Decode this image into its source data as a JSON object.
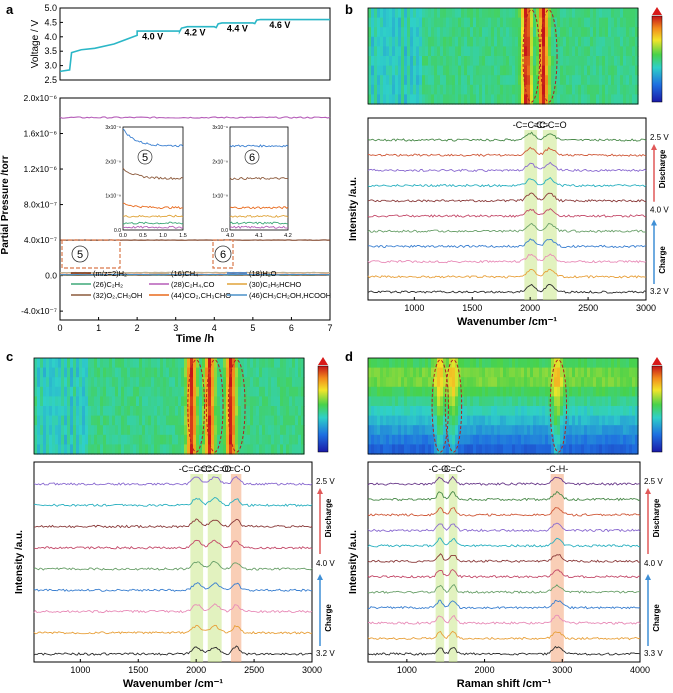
{
  "panels": {
    "a": {
      "letter": "a"
    },
    "b": {
      "letter": "b"
    },
    "c": {
      "letter": "c"
    },
    "d": {
      "letter": "d"
    }
  },
  "colors": {
    "voltage": "#2bb7c7",
    "heat_low": "#1f2db8",
    "heat_mid": "#31c66a",
    "heat_high": "#d2291a",
    "box_orange": "#d9784a",
    "band_green": "#cbe88a",
    "band_orange": "#f4a67a",
    "arrow_charge": "#3f8fd6",
    "arrow_discharge": "#e05858"
  },
  "chart_data": [
    {
      "id": "a-voltage",
      "type": "line",
      "ylabel": "Voltage / V",
      "ylim": [
        2.5,
        5.0
      ],
      "yticks": [
        "2.5",
        "3.0",
        "3.5",
        "4.0",
        "4.5",
        "5.0"
      ],
      "xlim": [
        0,
        7
      ],
      "series": [
        {
          "x": [
            0,
            0.25,
            0.3,
            0.55,
            0.9,
            1.4,
            1.9,
            2.0,
            2.0,
            3.1,
            3.1,
            3.15,
            3.3,
            4.0,
            4.05,
            4.1,
            4.2,
            5.0,
            5.05,
            5.1,
            5.2,
            7.0
          ],
          "y": [
            2.8,
            2.85,
            3.45,
            3.55,
            3.6,
            3.75,
            4.0,
            4.05,
            4.2,
            4.2,
            4.18,
            4.3,
            4.35,
            4.35,
            4.32,
            4.45,
            4.48,
            4.48,
            4.46,
            4.58,
            4.6,
            4.6
          ]
        }
      ],
      "annotations": [
        "4.0 V",
        "4.2 V",
        "4.4 V",
        "4.6 V"
      ]
    },
    {
      "id": "a-pressure",
      "type": "line",
      "ylabel": "Partial Pressure /torr",
      "xlabel": "Time /h",
      "xlim": [
        0,
        7
      ],
      "xticks": [
        "0",
        "1",
        "2",
        "3",
        "4",
        "5",
        "6",
        "7"
      ],
      "ylim": [
        -5e-07,
        2e-06
      ],
      "yticks": [
        "-4.0x10⁻⁷",
        "0.0",
        "4.0x10⁻⁷",
        "8.0x10⁻⁷",
        "1.2x10⁻⁶",
        "1.6x10⁻⁶",
        "2.0x10⁻⁶"
      ],
      "series": [
        {
          "name": "(m/z=2)H₂",
          "color": "#7a3b1f",
          "y": 4e-07
        },
        {
          "name": "(16)CH₄",
          "color": "#c0b090",
          "y": 3.5e-08
        },
        {
          "name": "(18)H₂O",
          "color": "#3a7fd0",
          "y": 1e-08
        },
        {
          "name": "(26)C₂H₂",
          "color": "#3fa878",
          "y": 5e-09
        },
        {
          "name": "(28)C₂H₄,CO",
          "color": "#b55db8",
          "y": 1.78e-06
        },
        {
          "name": "(30)C₂H₅HCHO",
          "color": "#e0a43a",
          "y": 8e-09
        },
        {
          "name": "(32)O₂,CH₃OH",
          "color": "#8c5a3c",
          "y": 6e-09
        },
        {
          "name": "(44)CO₂,CH₃CHO",
          "color": "#e86a1d",
          "y": 1.5e-08
        },
        {
          "name": "(46)CH₃CH₂OH,HCOOH",
          "color": "#4a90c8",
          "y": 1.2e-08
        }
      ],
      "markers": [
        "5",
        "6"
      ]
    },
    {
      "id": "a-inset-5",
      "type": "line",
      "label": "5",
      "xlim": [
        0,
        1.5
      ],
      "xticks": [
        "0.0",
        "0.5",
        "1.0",
        "1.5"
      ],
      "ylim": [
        0,
        3e-09
      ],
      "yticks": [
        "0.0",
        "1x10⁻⁹",
        "2x10⁻⁹",
        "3x10⁻⁹"
      ]
    },
    {
      "id": "a-inset-6",
      "type": "line",
      "label": "6",
      "xlim": [
        4.0,
        4.2
      ],
      "xticks": [
        "4.0",
        "4.1",
        "4.2"
      ],
      "ylim": [
        0,
        3e-09
      ],
      "yticks": [
        "0.0",
        "1x10⁻⁹",
        "2x10⁻⁹",
        "3x10⁻⁹"
      ]
    },
    {
      "id": "b",
      "type": "line",
      "xlabel": "Wavenumber /cm⁻¹",
      "ylabel": "Intensity /a.u.",
      "xlim": [
        600,
        3000
      ],
      "xticks": [
        "1000",
        "1500",
        "2000",
        "2500",
        "3000"
      ],
      "bands": [
        {
          "label": "-C=C=C-",
          "from": 1950,
          "to": 2060,
          "tone": "green"
        },
        {
          "label": "-C=C=O",
          "from": 2110,
          "to": 2230,
          "tone": "green"
        }
      ],
      "voltages": {
        "top": "2.5 V",
        "mid": "4.0 V",
        "bottom": "3.2 V"
      },
      "arrows": {
        "discharge": "Discharge",
        "charge": "Charge"
      },
      "heatmap_peaks": [
        2010,
        2160
      ],
      "n_spectra": 11
    },
    {
      "id": "c",
      "type": "line",
      "xlabel": "Wavenumber /cm⁻¹",
      "ylabel": "Intensity /a.u.",
      "xlim": [
        600,
        3000
      ],
      "xticks": [
        "1000",
        "1500",
        "2000",
        "2500",
        "3000"
      ],
      "bands": [
        {
          "label": "-C=C=C-",
          "from": 1950,
          "to": 2060,
          "tone": "green"
        },
        {
          "label": "-C=C=O",
          "from": 2100,
          "to": 2220,
          "tone": "green"
        },
        {
          "label": "O=C-O",
          "from": 2300,
          "to": 2390,
          "tone": "orange"
        }
      ],
      "voltages": {
        "top": "2.5 V",
        "mid": "4.0 V",
        "bottom": "3.2 V"
      },
      "arrows": {
        "discharge": "Discharge",
        "charge": "Charge"
      },
      "heatmap_peaks": [
        2000,
        2160,
        2350
      ],
      "n_spectra": 9
    },
    {
      "id": "d",
      "type": "line",
      "xlabel": "Raman shift /cm⁻¹",
      "ylabel": "Intensity /a.u.",
      "xlim": [
        500,
        4000
      ],
      "xticks": [
        "1000",
        "2000",
        "3000",
        "4000"
      ],
      "bands": [
        {
          "label": "-C-O-",
          "from": 1370,
          "to": 1480,
          "tone": "green"
        },
        {
          "label": "-C=C-",
          "from": 1540,
          "to": 1650,
          "tone": "green"
        },
        {
          "label": "-C-H-",
          "from": 2850,
          "to": 3020,
          "tone": "orange"
        }
      ],
      "voltages": {
        "top": "2.5 V",
        "mid": "4.0 V",
        "bottom": "3.3 V"
      },
      "arrows": {
        "discharge": "Discharge",
        "charge": "Charge"
      },
      "heatmap_peaks": [
        1430,
        1600,
        2950
      ],
      "n_spectra": 12
    }
  ]
}
